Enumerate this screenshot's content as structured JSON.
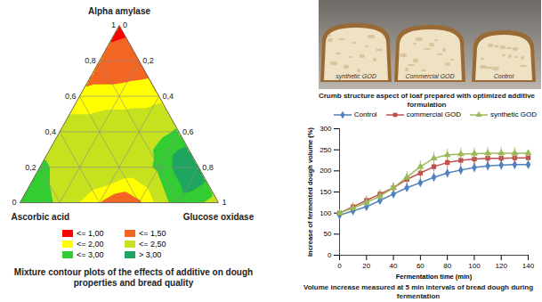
{
  "chart_data": [
    {
      "type": "ternary_contour",
      "caption": "Mixture contour plots of the effects of additive on dough properties and bread quality",
      "vertices": {
        "top": "Alpha amylase",
        "left": "Ascorbic acid",
        "right": "Glucose oxidase"
      },
      "alpha_amylase_ticks": [
        0,
        {
          "value": 0.2,
          "label": "0,2"
        },
        {
          "value": 0.4,
          "label": "0,4"
        },
        {
          "value": 0.6,
          "label": "0,6"
        },
        {
          "value": 0.8,
          "label": "0,8"
        },
        1
      ],
      "glucose_oxidase_ticks": [
        0,
        {
          "value": 0.2,
          "label": "0,2"
        },
        {
          "value": 0.4,
          "label": "0,4"
        },
        {
          "value": 0.6,
          "label": "0,6"
        },
        {
          "value": 0.8,
          "label": "0,8"
        },
        1
      ],
      "alpha_amylase": [
        0,
        0,
        0,
        0,
        0,
        0,
        0,
        0,
        0,
        0,
        0,
        0.1,
        0.1,
        0.1,
        0.1,
        0.1,
        0.1,
        0.1,
        0.1,
        0.1,
        0.1,
        0.2,
        0.2,
        0.2,
        0.2,
        0.2,
        0.2,
        0.2,
        0.2,
        0.2,
        0.3,
        0.3,
        0.3,
        0.3,
        0.3,
        0.3,
        0.3,
        0.3,
        0.4,
        0.4,
        0.4,
        0.4,
        0.4,
        0.4,
        0.4,
        0.5,
        0.5,
        0.5,
        0.5,
        0.5,
        0.5,
        0.6,
        0.6,
        0.6,
        0.6,
        0.6,
        0.7,
        0.7,
        0.7,
        0.7,
        0.8,
        0.8,
        0.8,
        0.9,
        0.9,
        1
      ],
      "glucose_oxidase": [
        0,
        0.1,
        0.2,
        0.3,
        0.4,
        0.5,
        0.6,
        0.7,
        0.8,
        0.9,
        1,
        0,
        0.1,
        0.2,
        0.3,
        0.4,
        0.5,
        0.6,
        0.7,
        0.8,
        0.9,
        0,
        0.1,
        0.2,
        0.3,
        0.4,
        0.5,
        0.6,
        0.7,
        0.8,
        0,
        0.1,
        0.2,
        0.3,
        0.4,
        0.5,
        0.6,
        0.7,
        0,
        0.1,
        0.2,
        0.3,
        0.4,
        0.5,
        0.6,
        0,
        0.1,
        0.2,
        0.3,
        0.4,
        0.5,
        0,
        0.1,
        0.2,
        0.3,
        0.4,
        0,
        0.1,
        0.2,
        0.3,
        0,
        0.1,
        0.2,
        0,
        0.1,
        0
      ],
      "values": [
        2.9,
        2.7,
        2.4,
        2.0,
        1.5,
        1.0,
        1.4,
        2.2,
        2.8,
        2.6,
        2.2,
        2.8,
        2.5,
        2.3,
        2.2,
        2.0,
        1.8,
        2.1,
        2.7,
        3.2,
        2.9,
        2.6,
        2.4,
        2.3,
        2.3,
        2.3,
        2.3,
        2.6,
        3.2,
        3.3,
        2.4,
        2.3,
        2.3,
        2.3,
        2.3,
        2.4,
        2.9,
        3.1,
        2.2,
        2.2,
        2.2,
        2.2,
        2.2,
        2.3,
        2.6,
        2.0,
        2.0,
        2.1,
        2.1,
        2.1,
        2.2,
        1.6,
        1.7,
        1.7,
        1.8,
        1.9,
        1.4,
        1.4,
        1.45,
        1.5,
        1.3,
        1.3,
        1.3,
        1.0,
        1.1,
        0.8
      ],
      "color_scale": {
        "thresholds": [
          1,
          1.5,
          2,
          2.5,
          3
        ],
        "classes": [
          {
            "label": "<= 1,00",
            "color": "#ff0000"
          },
          {
            "label": "<= 1,50",
            "color": "#f26522"
          },
          {
            "label": "<= 2,00",
            "color": "#ffff00"
          },
          {
            "label": "<= 2,50",
            "color": "#c6e21e"
          },
          {
            "label": "<= 3,00",
            "color": "#33cc33"
          },
          {
            "label": "> 3,00",
            "color": "#1fa560"
          }
        ]
      }
    },
    {
      "type": "line",
      "caption": "Volume increase measured at 5 min intervals of bread dough during fermentation",
      "x_label": "Fermentation time (min)",
      "y_label": "Increase of fermented dough volume (%)",
      "x": [
        0,
        10,
        20,
        30,
        40,
        50,
        60,
        70,
        80,
        90,
        100,
        110,
        120,
        130,
        140
      ],
      "xlim": [
        0,
        140
      ],
      "xticks": [
        0,
        20,
        40,
        60,
        80,
        100,
        120,
        140
      ],
      "ylim": [
        0,
        300
      ],
      "yticks": [
        0,
        50,
        100,
        150,
        200,
        250,
        300
      ],
      "grid": false,
      "legend": "top-right",
      "series": [
        {
          "name": "Control",
          "color": "#4f81bd",
          "marker": "diamond",
          "values": [
            95,
            105,
            115,
            130,
            145,
            160,
            172,
            185,
            195,
            202,
            208,
            212,
            214,
            215,
            215
          ],
          "error": [
            8,
            8,
            9,
            10,
            10,
            10,
            11,
            11,
            11,
            12,
            12,
            12,
            12,
            12,
            12
          ]
        },
        {
          "name": "commercial GOD",
          "color": "#c0504d",
          "marker": "square",
          "values": [
            100,
            115,
            130,
            145,
            160,
            180,
            195,
            210,
            220,
            225,
            228,
            230,
            230,
            231,
            231
          ],
          "error": [
            8,
            9,
            10,
            10,
            11,
            12,
            12,
            12,
            13,
            13,
            13,
            13,
            13,
            13,
            13
          ]
        },
        {
          "name": "synthetic GOD",
          "color": "#9bbb59",
          "marker": "triangle",
          "values": [
            100,
            112,
            125,
            140,
            160,
            185,
            210,
            230,
            238,
            240,
            241,
            242,
            242,
            242,
            242
          ],
          "error": [
            8,
            9,
            10,
            11,
            12,
            13,
            14,
            14,
            14,
            14,
            14,
            14,
            14,
            14,
            14
          ]
        }
      ]
    }
  ],
  "photo": {
    "caption": "Crumb structure aspect of loaf prepared with optimized additive formulation",
    "labels": [
      "synthetic GOD",
      "Commercial GOD",
      "Control"
    ]
  }
}
